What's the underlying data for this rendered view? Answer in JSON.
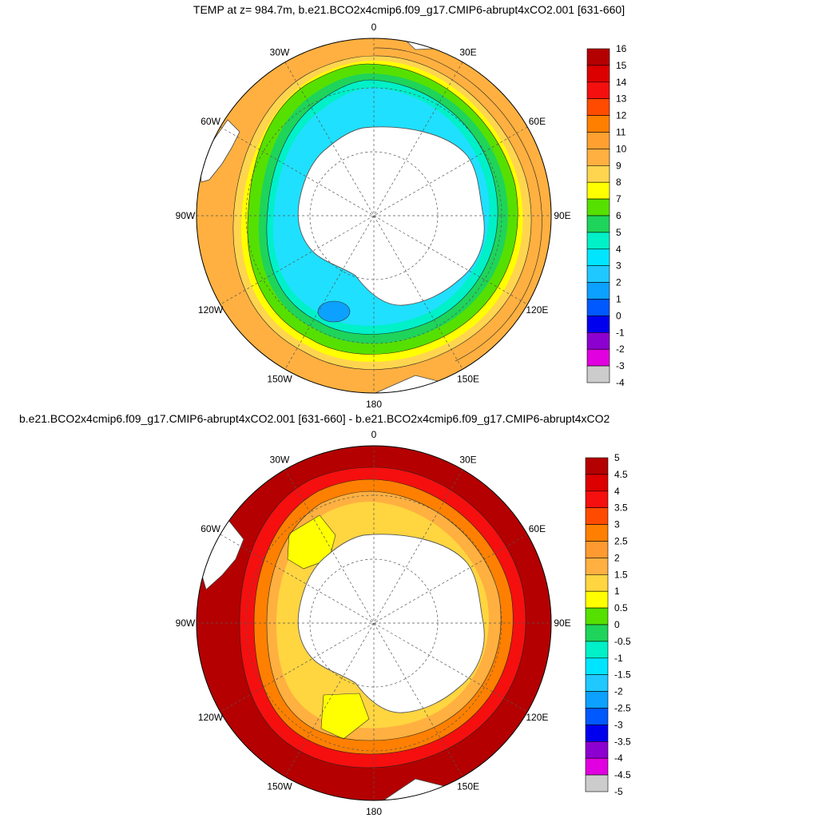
{
  "panels": [
    {
      "title": "TEMP at z= 984.7m, b.e21.BCO2x4cmip6.f09_g17.CMIP6-abrupt4xCO2.001 [631-660]",
      "lon_labels": [
        "0",
        "30E",
        "60E",
        "90E",
        "120E",
        "150E",
        "180",
        "150W",
        "120W",
        "90W",
        "60W",
        "30W"
      ],
      "colorbar": {
        "labels": [
          "16",
          "15",
          "14",
          "13",
          "12",
          "11",
          "10",
          "9",
          "8",
          "7",
          "6",
          "5",
          "4",
          "3",
          "2",
          "1",
          "0",
          "-1",
          "-2",
          "-3",
          "-4"
        ],
        "colors": [
          "#b40000",
          "#dc0000",
          "#f50f0f",
          "#ff4b00",
          "#ff8000",
          "#ffa030",
          "#ffb040",
          "#ffd54f",
          "#ffff00",
          "#56e000",
          "#1ed45a",
          "#00f0c8",
          "#00e5ff",
          "#1fc8ff",
          "#0ca0ff",
          "#0058ff",
          "#0000ee",
          "#8c00d0",
          "#e000e0",
          "#cccccc",
          "#707070"
        ]
      }
    },
    {
      "title": "b.e21.BCO2x4cmip6.f09_g17.CMIP6-abrupt4xCO2.001 [631-660] - b.e21.BCO2x4cmip6.f09_g17.CMIP6-abrupt4xCO2",
      "lon_labels": [
        "0",
        "30E",
        "60E",
        "90E",
        "120E",
        "150E",
        "180",
        "150W",
        "120W",
        "90W",
        "60W",
        "30W"
      ],
      "colorbar": {
        "labels": [
          "5",
          "4.5",
          "4",
          "3.5",
          "3",
          "2.5",
          "2",
          "1.5",
          "1",
          "0.5",
          "0",
          "-0.5",
          "-1",
          "-1.5",
          "-2",
          "-2.5",
          "-3",
          "-3.5",
          "-4",
          "-4.5",
          "-5"
        ],
        "colors": [
          "#b40000",
          "#dc0000",
          "#f50f0f",
          "#ff4b00",
          "#ff8000",
          "#ff9a30",
          "#ffb040",
          "#ffd540",
          "#ffff00",
          "#56e000",
          "#1ed45a",
          "#00f0c8",
          "#00e5ff",
          "#1fc8ff",
          "#0ca0ff",
          "#0058ff",
          "#0000ee",
          "#8c00d0",
          "#e000e0",
          "#cccccc",
          "#707070"
        ]
      }
    }
  ]
}
